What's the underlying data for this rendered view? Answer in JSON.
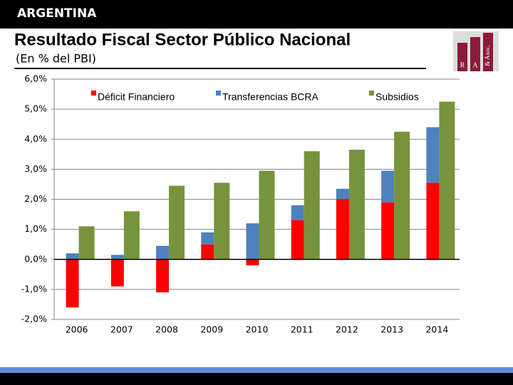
{
  "header": "ARGENTINA",
  "logo": [
    "R",
    "A",
    "& Asoc."
  ],
  "chart_data": {
    "type": "bar",
    "title": "Resultado Fiscal Sector Público Nacional",
    "subtitle": "(En % del PBI)",
    "categories": [
      "2006",
      "2007",
      "2008",
      "2009",
      "2010",
      "2011",
      "2012",
      "2013",
      "2014"
    ],
    "series": [
      {
        "name": "Déficit Financiero",
        "color": "#ff0000",
        "values": [
          -1.6,
          -0.9,
          -1.1,
          0.5,
          -0.2,
          1.3,
          2.0,
          1.9,
          2.55
        ]
      },
      {
        "name": "Transferencias BCRA",
        "color": "#4f81bd",
        "values": [
          0.2,
          0.15,
          0.45,
          0.4,
          1.2,
          0.5,
          0.35,
          1.05,
          1.85
        ]
      },
      {
        "name": "Subsidios",
        "color": "#77933c",
        "values": [
          1.1,
          1.6,
          2.45,
          2.55,
          2.95,
          3.6,
          3.65,
          4.25,
          5.25
        ]
      }
    ],
    "ylim": [
      -2,
      6
    ],
    "yticks": [
      {
        "value": -2,
        "label": "-2,0%"
      },
      {
        "value": -1,
        "label": "-1,0%"
      },
      {
        "value": 0,
        "label": "0,0%"
      },
      {
        "value": 1,
        "label": "1,0%"
      },
      {
        "value": 2,
        "label": "2,0%"
      },
      {
        "value": 3,
        "label": "3,0%"
      },
      {
        "value": 4,
        "label": "4,0%"
      },
      {
        "value": 5,
        "label": "5,0%"
      },
      {
        "value": 6,
        "label": "6,0%"
      }
    ],
    "grid": true
  }
}
